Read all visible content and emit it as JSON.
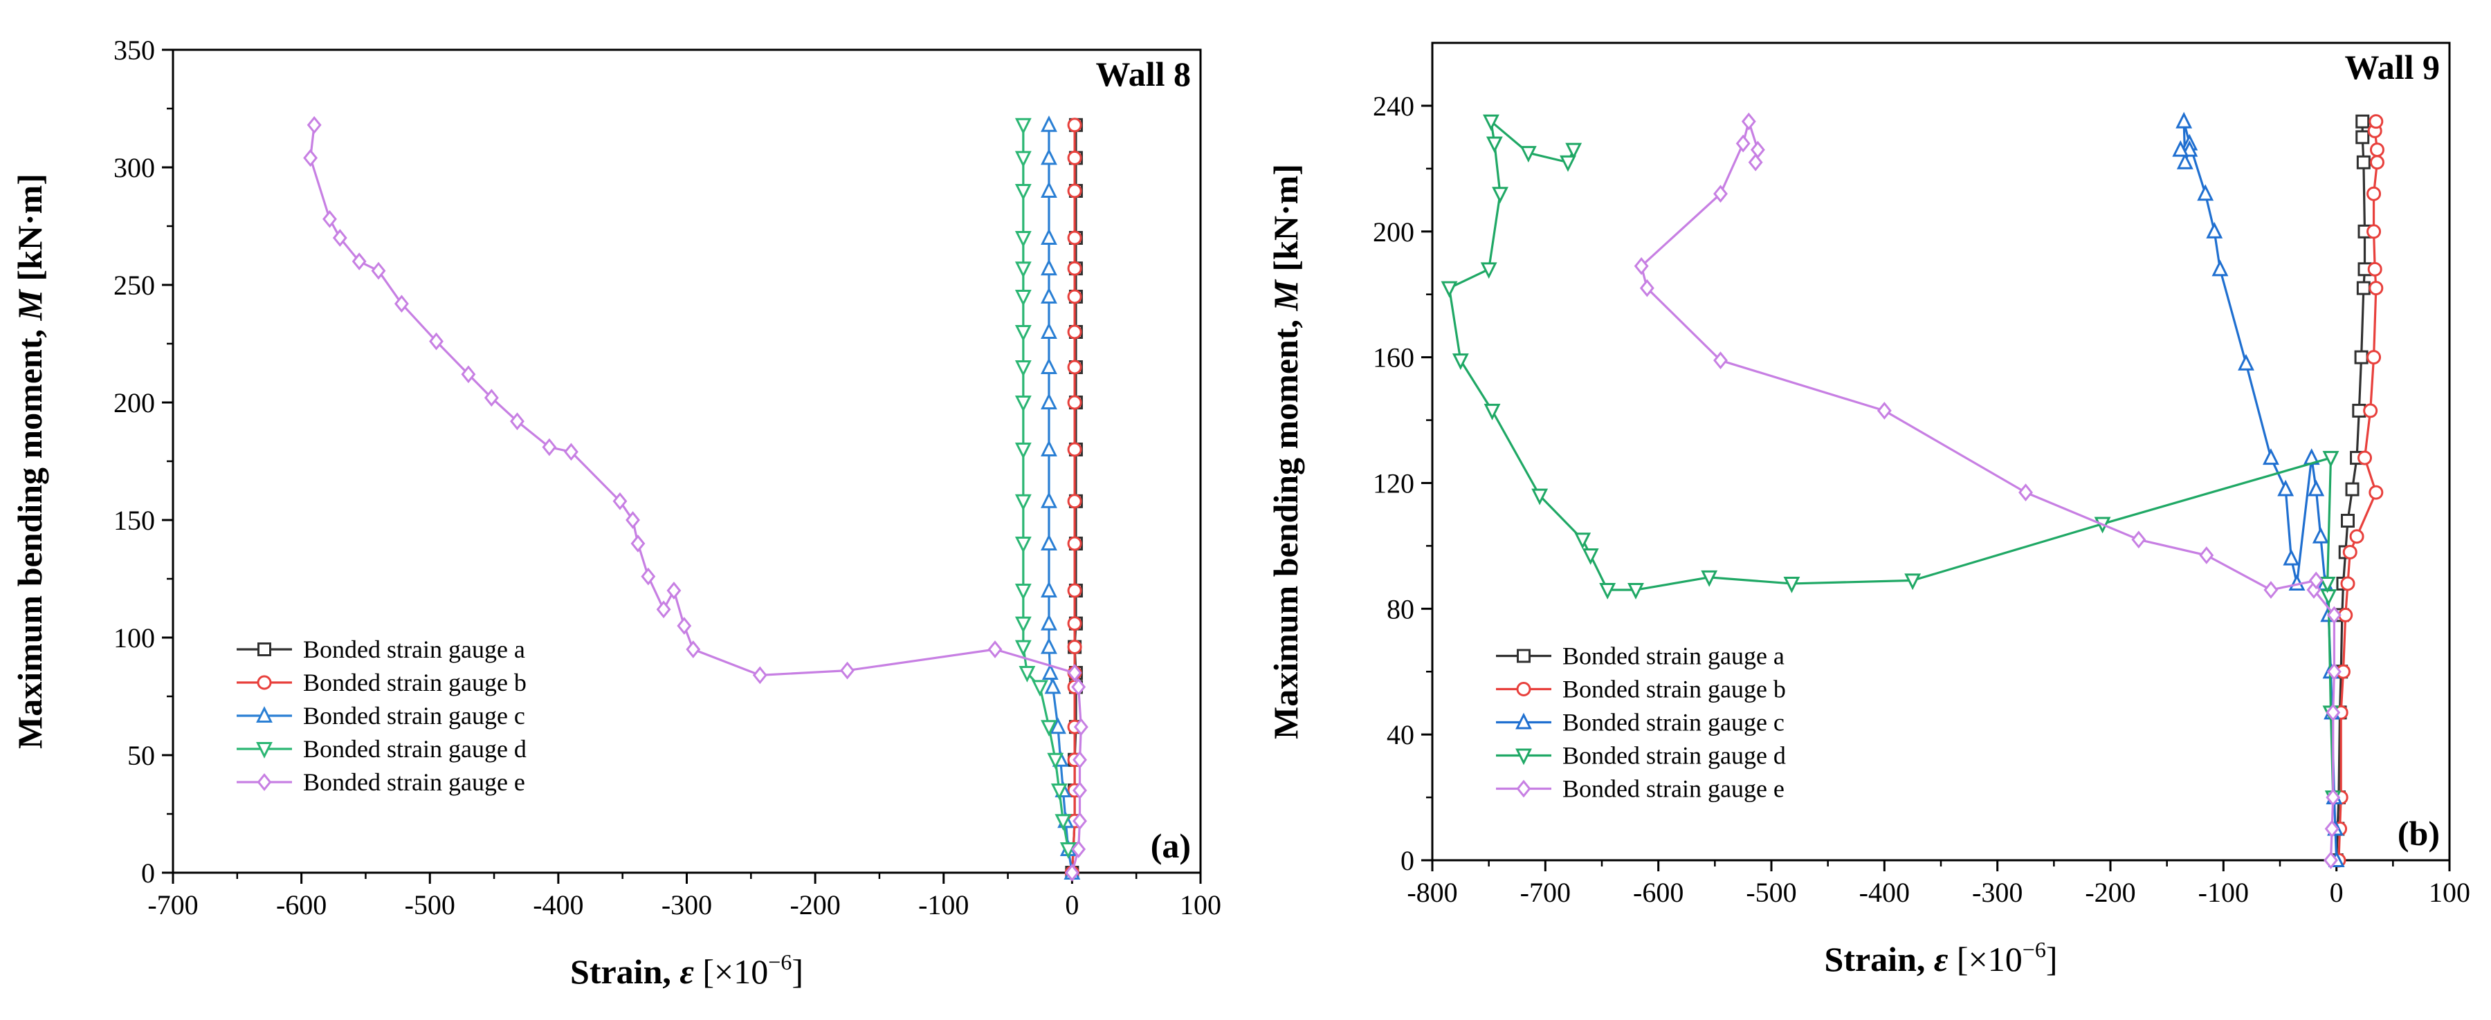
{
  "chart_data": [
    {
      "type": "line",
      "panel_label": "(a)",
      "title": "Wall 8",
      "xlabel_main": "Strain, ",
      "xlabel_symbol": "ε",
      "xlabel_unit_prefix": " [×10",
      "xlabel_unit_exp": "−6",
      "xlabel_unit_suffix": "]",
      "ylabel_main": "Maximum bending moment, ",
      "ylabel_symbol": "M",
      "ylabel_unit": " [kN·m]",
      "xlim": [
        -700,
        100
      ],
      "ylim": [
        0,
        350
      ],
      "xticks": [
        -700,
        -600,
        -500,
        -400,
        -300,
        -200,
        -100,
        0,
        100
      ],
      "yticks": [
        0,
        50,
        100,
        150,
        200,
        250,
        300,
        350
      ],
      "legend_position": "lower-left",
      "series": [
        {
          "name": "Bonded strain gauge a",
          "color": "#303030",
          "marker": "square",
          "points": [
            [
              0,
              0
            ],
            [
              1,
              10
            ],
            [
              2,
              22
            ],
            [
              2,
              35
            ],
            [
              2,
              48
            ],
            [
              3,
              62
            ],
            [
              3,
              79
            ],
            [
              3,
              85
            ],
            [
              2,
              96
            ],
            [
              3,
              106
            ],
            [
              3,
              120
            ],
            [
              3,
              140
            ],
            [
              3,
              158
            ],
            [
              3,
              180
            ],
            [
              3,
              200
            ],
            [
              3,
              215
            ],
            [
              3,
              230
            ],
            [
              3,
              245
            ],
            [
              3,
              257
            ],
            [
              3,
              270
            ],
            [
              3,
              290
            ],
            [
              3,
              304
            ],
            [
              3,
              318
            ]
          ]
        },
        {
          "name": "Bonded strain gauge b",
          "color": "#e8403c",
          "marker": "circle",
          "points": [
            [
              0,
              0
            ],
            [
              1,
              10
            ],
            [
              2,
              22
            ],
            [
              2,
              35
            ],
            [
              2,
              48
            ],
            [
              2,
              62
            ],
            [
              2,
              79
            ],
            [
              2,
              85
            ],
            [
              2,
              96
            ],
            [
              2,
              106
            ],
            [
              2,
              120
            ],
            [
              2,
              140
            ],
            [
              2,
              158
            ],
            [
              2,
              180
            ],
            [
              2,
              200
            ],
            [
              2,
              215
            ],
            [
              2,
              230
            ],
            [
              2,
              245
            ],
            [
              2,
              257
            ],
            [
              2,
              270
            ],
            [
              2,
              290
            ],
            [
              2,
              304
            ],
            [
              2,
              318
            ]
          ]
        },
        {
          "name": "Bonded strain gauge c",
          "color": "#2a7fd4",
          "marker": "triangle-up",
          "points": [
            [
              0,
              0
            ],
            [
              -3,
              10
            ],
            [
              -5,
              22
            ],
            [
              -7,
              35
            ],
            [
              -9,
              48
            ],
            [
              -11,
              62
            ],
            [
              -15,
              79
            ],
            [
              -17,
              85
            ],
            [
              -18,
              96
            ],
            [
              -18,
              106
            ],
            [
              -18,
              120
            ],
            [
              -18,
              140
            ],
            [
              -18,
              158
            ],
            [
              -18,
              180
            ],
            [
              -18,
              200
            ],
            [
              -18,
              215
            ],
            [
              -18,
              230
            ],
            [
              -18,
              245
            ],
            [
              -18,
              257
            ],
            [
              -18,
              270
            ],
            [
              -18,
              290
            ],
            [
              -18,
              304
            ],
            [
              -18,
              318
            ]
          ]
        },
        {
          "name": "Bonded strain gauge d",
          "color": "#2bb673",
          "marker": "triangle-down",
          "points": [
            [
              -3,
              10
            ],
            [
              -7,
              22
            ],
            [
              -10,
              35
            ],
            [
              -13,
              48
            ],
            [
              -18,
              62
            ],
            [
              -25,
              79
            ],
            [
              -35,
              85
            ],
            [
              -38,
              96
            ],
            [
              -38,
              106
            ],
            [
              -38,
              120
            ],
            [
              -38,
              140
            ],
            [
              -38,
              158
            ],
            [
              -38,
              180
            ],
            [
              -38,
              200
            ],
            [
              -38,
              215
            ],
            [
              -38,
              230
            ],
            [
              -38,
              245
            ],
            [
              -38,
              257
            ],
            [
              -38,
              270
            ],
            [
              -38,
              290
            ],
            [
              -38,
              304
            ],
            [
              -38,
              318
            ]
          ]
        },
        {
          "name": "Bonded strain gauge e",
          "color": "#c77fe3",
          "marker": "diamond",
          "points": [
            [
              0,
              0
            ],
            [
              5,
              10
            ],
            [
              6,
              22
            ],
            [
              6,
              35
            ],
            [
              6,
              48
            ],
            [
              7,
              62
            ],
            [
              5,
              79
            ],
            [
              2,
              85
            ],
            [
              -60,
              95
            ],
            [
              -175,
              86
            ],
            [
              -243,
              84
            ],
            [
              -295,
              95
            ],
            [
              -302,
              105
            ],
            [
              -310,
              120
            ],
            [
              -318,
              112
            ],
            [
              -330,
              126
            ],
            [
              -338,
              140
            ],
            [
              -342,
              150
            ],
            [
              -352,
              158
            ],
            [
              -390,
              179
            ],
            [
              -407,
              181
            ],
            [
              -432,
              192
            ],
            [
              -452,
              202
            ],
            [
              -470,
              212
            ],
            [
              -495,
              226
            ],
            [
              -522,
              242
            ],
            [
              -540,
              256
            ],
            [
              -555,
              260
            ],
            [
              -570,
              270
            ],
            [
              -578,
              278
            ],
            [
              -593,
              304
            ],
            [
              -590,
              318
            ]
          ]
        }
      ]
    },
    {
      "type": "line",
      "panel_label": "(b)",
      "title": "Wall 9",
      "xlabel_main": "Strain, ",
      "xlabel_symbol": "ε",
      "xlabel_unit_prefix": " [×10",
      "xlabel_unit_exp": "−6",
      "xlabel_unit_suffix": "]",
      "ylabel_main": "Maximum bending moment, ",
      "ylabel_symbol": "M",
      "ylabel_unit": " [kN·m]",
      "xlim": [
        -800,
        100
      ],
      "ylim": [
        0,
        260
      ],
      "xticks": [
        -800,
        -700,
        -600,
        -500,
        -400,
        -300,
        -200,
        -100,
        0,
        100
      ],
      "yticks": [
        0,
        40,
        80,
        120,
        160,
        200,
        240
      ],
      "legend_position": "lower-left",
      "series": [
        {
          "name": "Bonded strain gauge a",
          "color": "#303030",
          "marker": "square",
          "points": [
            [
              0,
              0
            ],
            [
              1,
              10
            ],
            [
              2,
              20
            ],
            [
              3,
              47
            ],
            [
              4,
              60
            ],
            [
              5,
              78
            ],
            [
              6,
              88
            ],
            [
              8,
              98
            ],
            [
              10,
              108
            ],
            [
              14,
              118
            ],
            [
              18,
              128
            ],
            [
              20,
              143
            ],
            [
              22,
              160
            ],
            [
              24,
              182
            ],
            [
              25,
              188
            ],
            [
              25,
              200
            ],
            [
              24,
              222
            ],
            [
              23,
              230
            ],
            [
              23,
              235
            ]
          ]
        },
        {
          "name": "Bonded strain gauge b",
          "color": "#e8403c",
          "marker": "circle",
          "points": [
            [
              2,
              0
            ],
            [
              3,
              10
            ],
            [
              4,
              20
            ],
            [
              4,
              47
            ],
            [
              6,
              60
            ],
            [
              8,
              78
            ],
            [
              10,
              88
            ],
            [
              12,
              98
            ],
            [
              18,
              103
            ],
            [
              35,
              117
            ],
            [
              25,
              128
            ],
            [
              30,
              143
            ],
            [
              33,
              160
            ],
            [
              35,
              182
            ],
            [
              34,
              188
            ],
            [
              33,
              200
            ],
            [
              33,
              212
            ],
            [
              36,
              222
            ],
            [
              36,
              226
            ],
            [
              34,
              232
            ],
            [
              35,
              235
            ]
          ]
        },
        {
          "name": "Bonded strain gauge c",
          "color": "#1f6fd0",
          "marker": "triangle-up",
          "points": [
            [
              0,
              0
            ],
            [
              -1,
              10
            ],
            [
              -2,
              20
            ],
            [
              -4,
              47
            ],
            [
              -5,
              60
            ],
            [
              -7,
              78
            ],
            [
              -10,
              88
            ],
            [
              -14,
              103
            ],
            [
              -18,
              118
            ],
            [
              -22,
              128
            ],
            [
              -35,
              88
            ],
            [
              -40,
              96
            ],
            [
              -45,
              118
            ],
            [
              -58,
              128
            ],
            [
              -80,
              158
            ],
            [
              -103,
              188
            ],
            [
              -108,
              200
            ],
            [
              -116,
              212
            ],
            [
              -130,
              228
            ],
            [
              -135,
              235
            ],
            [
              -134,
              222
            ],
            [
              -130,
              226
            ],
            [
              -138,
              226
            ]
          ]
        },
        {
          "name": "Bonded strain gauge d",
          "color": "#1fa865",
          "marker": "triangle-down",
          "points": [
            [
              -3,
              20
            ],
            [
              -5,
              47
            ],
            [
              -7,
              84
            ],
            [
              -8,
              88
            ],
            [
              -5,
              128
            ],
            [
              -207,
              107
            ],
            [
              -375,
              89
            ],
            [
              -482,
              88
            ],
            [
              -555,
              90
            ],
            [
              -620,
              86
            ],
            [
              -645,
              86
            ],
            [
              -660,
              97
            ],
            [
              -667,
              102
            ],
            [
              -705,
              116
            ],
            [
              -747,
              143
            ],
            [
              -775,
              159
            ],
            [
              -785,
              182
            ],
            [
              -750,
              188
            ],
            [
              -740,
              212
            ],
            [
              -745,
              228
            ],
            [
              -748,
              235
            ],
            [
              -715,
              225
            ],
            [
              -680,
              222
            ],
            [
              -675,
              226
            ]
          ]
        },
        {
          "name": "Bonded strain gauge e",
          "color": "#c77fe3",
          "marker": "diamond",
          "points": [
            [
              -5,
              0
            ],
            [
              -4,
              10
            ],
            [
              -3,
              20
            ],
            [
              -3,
              47
            ],
            [
              -2,
              60
            ],
            [
              -2,
              78
            ],
            [
              -20,
              86
            ],
            [
              -18,
              89
            ],
            [
              -58,
              86
            ],
            [
              -115,
              97
            ],
            [
              -175,
              102
            ],
            [
              -275,
              117
            ],
            [
              -400,
              143
            ],
            [
              -545,
              159
            ],
            [
              -610,
              182
            ],
            [
              -615,
              189
            ],
            [
              -545,
              212
            ],
            [
              -525,
              228
            ],
            [
              -520,
              235
            ],
            [
              -512,
              226
            ],
            [
              -514,
              222
            ]
          ]
        }
      ]
    }
  ]
}
